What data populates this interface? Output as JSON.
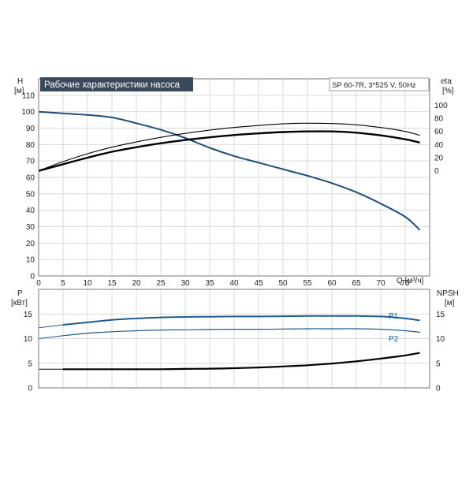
{
  "header": {
    "title": "Рабочие характеристики насоса",
    "model": "SP 60-7R, 3*525 V, 50Hz"
  },
  "colors": {
    "head_curve": "#1f4e79",
    "p_curves": "#1f5b8f",
    "efficiency_curves": "#000000",
    "npsh_curve": "#000000",
    "grid": "#d9d9d9",
    "title_bg": "#3a4a5c"
  },
  "chart_data": [
    {
      "type": "line",
      "name": "top-chart",
      "x_axis": {
        "label": "Q [м³/ч]",
        "range": [
          0,
          80
        ],
        "ticks": [
          0,
          5,
          10,
          15,
          20,
          25,
          30,
          35,
          40,
          45,
          50,
          55,
          60,
          65,
          70,
          75
        ],
        "tick_labels": [
          "0",
          "5",
          "10",
          "15",
          "20",
          "25",
          "30",
          "35",
          "40",
          "45",
          "50",
          "55",
          "60",
          "65",
          "70",
          "75"
        ]
      },
      "y_left": {
        "label_top": "H",
        "label_unit": "[м]",
        "range": [
          0,
          120
        ],
        "ticks": [
          0,
          10,
          20,
          30,
          40,
          50,
          60,
          70,
          80,
          90,
          100,
          110
        ],
        "tick_labels": [
          "0",
          "10",
          "20",
          "30",
          "40",
          "50",
          "60",
          "70",
          "80",
          "90",
          "100",
          "110"
        ]
      },
      "y_right": {
        "label_top": "eta",
        "label_unit": "[%]",
        "range": [
          -160,
          140
        ],
        "ticks": [
          0,
          20,
          40,
          60,
          80,
          100
        ],
        "tick_labels": [
          "0",
          "20",
          "40",
          "60",
          "80",
          "100"
        ]
      },
      "grid": true,
      "series": [
        {
          "key": "head",
          "axis": "left",
          "x": [
            0,
            5,
            10,
            15,
            20,
            25,
            30,
            35,
            40,
            45,
            50,
            55,
            60,
            65,
            70,
            75,
            78
          ],
          "y": [
            100,
            99,
            98,
            96.5,
            93,
            89,
            84,
            78,
            73,
            69,
            65,
            61,
            56.5,
            51,
            44,
            36,
            28
          ]
        },
        {
          "key": "eta-upper",
          "axis": "right",
          "x": [
            0,
            5,
            10,
            15,
            20,
            25,
            30,
            35,
            40,
            45,
            50,
            55,
            60,
            65,
            70,
            75,
            78
          ],
          "y": [
            0,
            14,
            26,
            36,
            44,
            51,
            57,
            62,
            66,
            69,
            71.5,
            72.5,
            72,
            70,
            66,
            60,
            54
          ]
        },
        {
          "key": "eta-lower",
          "axis": "right",
          "x": [
            0,
            5,
            10,
            15,
            20,
            25,
            30,
            35,
            40,
            45,
            50,
            55,
            60,
            65,
            70,
            75,
            78
          ],
          "y": [
            0,
            10,
            20,
            29,
            36,
            42,
            47,
            51,
            54.5,
            57,
            59,
            60,
            60,
            58,
            54,
            48,
            43
          ]
        }
      ]
    },
    {
      "type": "line",
      "name": "bottom-chart",
      "x_axis": {
        "range": [
          0,
          80
        ]
      },
      "y_left": {
        "label_top": "P",
        "label_unit": "[кВт]",
        "range": [
          0,
          20
        ],
        "ticks": [
          0,
          5,
          10,
          15
        ],
        "tick_labels": [
          "0",
          "5",
          "10",
          "15"
        ]
      },
      "y_right": {
        "label_top": "NPSH",
        "label_unit": "[м]",
        "range": [
          0,
          20
        ],
        "ticks": [
          0,
          5,
          10,
          15
        ],
        "tick_labels": [
          "0",
          "5",
          "10",
          "15"
        ]
      },
      "grid": true,
      "series": [
        {
          "name": "P1",
          "x": [
            5,
            10,
            15,
            20,
            25,
            30,
            35,
            40,
            45,
            50,
            55,
            60,
            65,
            70,
            75,
            78
          ],
          "y": [
            12.8,
            13.3,
            13.8,
            14.1,
            14.3,
            14.4,
            14.45,
            14.5,
            14.5,
            14.55,
            14.6,
            14.6,
            14.6,
            14.5,
            14.1,
            13.7
          ]
        },
        {
          "key": "P1-ext",
          "x": [
            0,
            5
          ],
          "y": [
            12.2,
            12.8
          ]
        },
        {
          "name": "P2",
          "x": [
            5,
            10,
            15,
            20,
            25,
            30,
            35,
            40,
            45,
            50,
            55,
            60,
            65,
            70,
            75,
            78
          ],
          "y": [
            10.6,
            11.1,
            11.4,
            11.6,
            11.75,
            11.8,
            11.85,
            11.9,
            11.9,
            11.95,
            12.0,
            12.0,
            12.0,
            11.9,
            11.6,
            11.3
          ]
        },
        {
          "key": "P2-ext",
          "x": [
            0,
            5
          ],
          "y": [
            10.0,
            10.6
          ]
        },
        {
          "key": "NPSH",
          "x": [
            5,
            10,
            15,
            20,
            25,
            30,
            35,
            40,
            45,
            50,
            55,
            60,
            65,
            70,
            75,
            78
          ],
          "y": [
            3.8,
            3.8,
            3.8,
            3.8,
            3.8,
            3.85,
            3.9,
            4.0,
            4.15,
            4.35,
            4.6,
            4.95,
            5.4,
            5.95,
            6.6,
            7.1
          ]
        },
        {
          "key": "NPSH-ext",
          "x": [
            0,
            5
          ],
          "y": [
            3.8,
            3.8
          ]
        }
      ]
    }
  ]
}
